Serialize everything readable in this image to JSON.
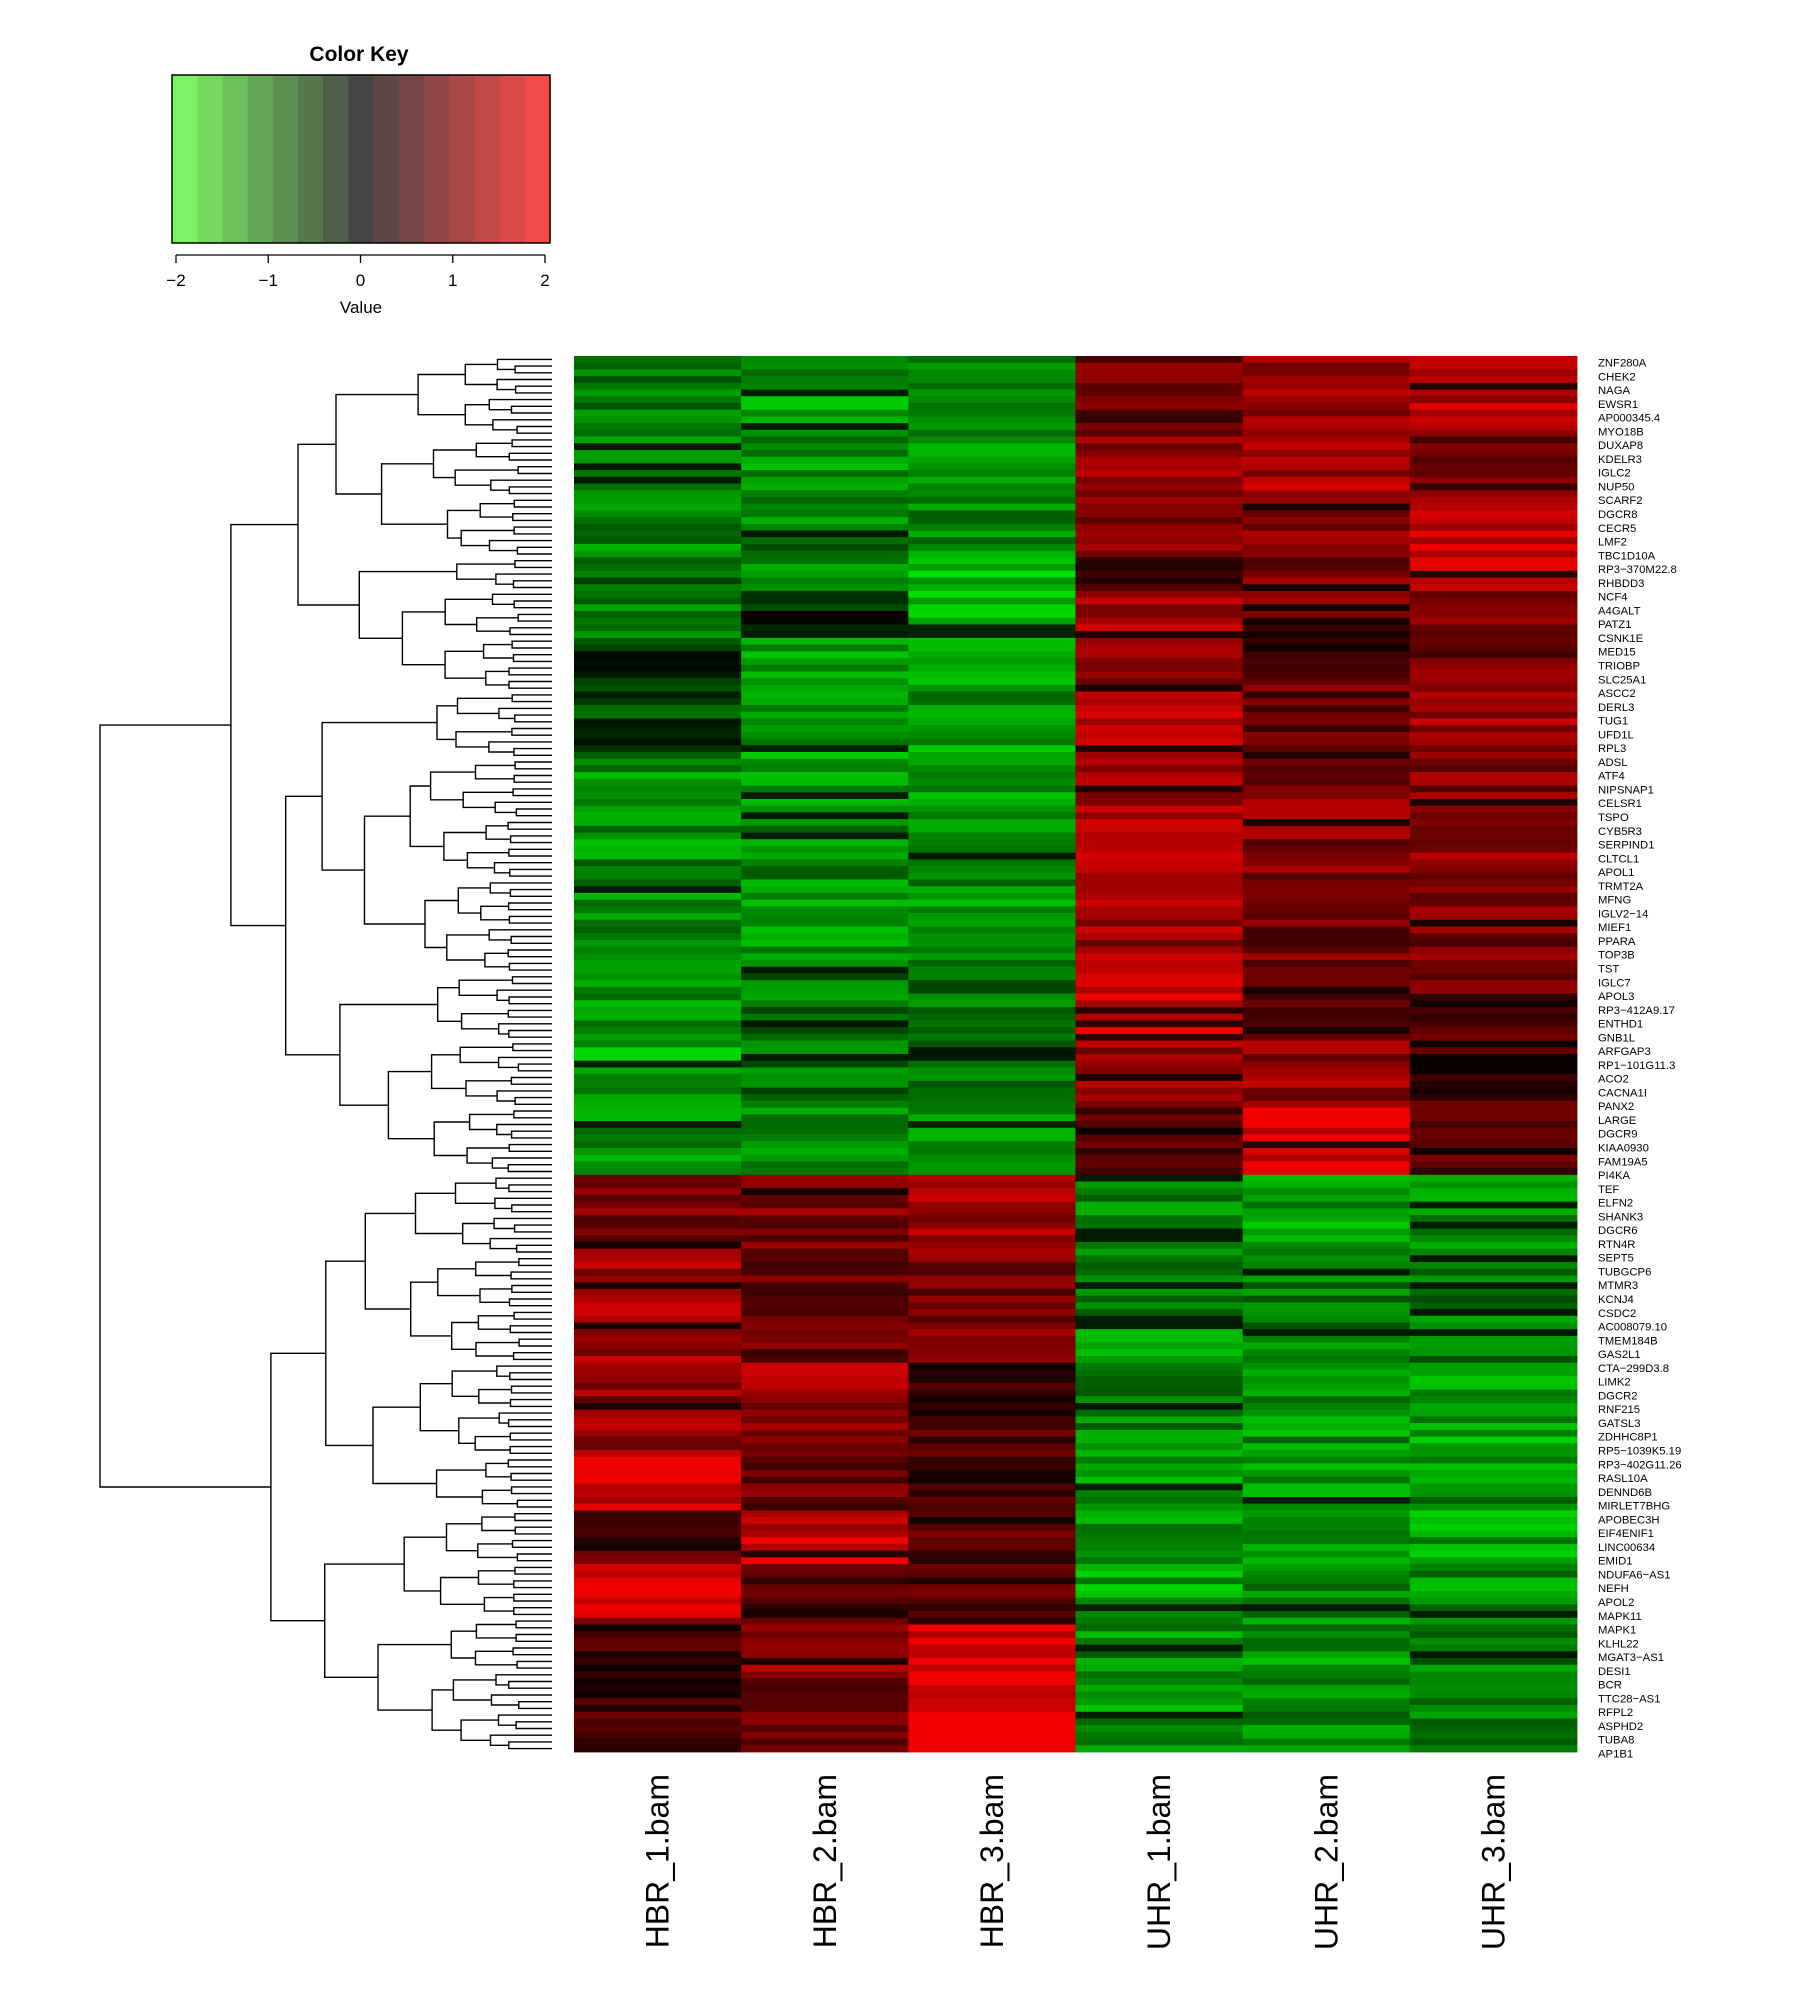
{
  "chart_data": {
    "type": "heatmap",
    "title": "",
    "color_key": {
      "title": "Color Key",
      "xlabel": "Value",
      "ticks": [
        "−2",
        "−1",
        "0",
        "1",
        "2"
      ],
      "range": [
        -2,
        2
      ],
      "n_bins": 15,
      "low_color": "#80ff66",
      "mid_color": "#454545",
      "high_color": "#ff4a4a"
    },
    "colors": {
      "low": "#00ff00",
      "mid": "#000000",
      "high": "#ff0000"
    },
    "columns": [
      "HBR_1.bam",
      "HBR_2.bam",
      "HBR_3.bam",
      "UHR_1.bam",
      "UHR_2.bam",
      "UHR_3.bam"
    ],
    "n_rows": 208,
    "visible_row_labels": [
      "ZNF280A",
      "CHEK2",
      "NAGA",
      "EWSR1",
      "AP000345.4",
      "MYO18B",
      "DUXAP8",
      "KDELR3",
      "IGLC2",
      "NUP50",
      "SCARF2",
      "DGCR8",
      "CECR5",
      "LMF2",
      "TBC1D10A",
      "RP3−370M22.8",
      "RHBDD3",
      "NCF4",
      "A4GALT",
      "PATZ1",
      "CSNK1E",
      "MED15",
      "TRIOBP",
      "SLC25A1",
      "ASCC2",
      "DERL3",
      "TUG1",
      "UFD1L",
      "RPL3",
      "ADSL",
      "ATF4",
      "NIPSNAP1",
      "CELSR1",
      "TSPO",
      "CYB5R3",
      "SERPIND1",
      "CLTCL1",
      "APOL1",
      "TRMT2A",
      "MFNG",
      "IGLV2−14",
      "MIEF1",
      "PPARA",
      "TOP3B",
      "TST",
      "IGLC7",
      "APOL3",
      "RP3−412A9.17",
      "ENTHD1",
      "GNB1L",
      "ARFGAP3",
      "RP1−101G11.3",
      "ACO2",
      "CACNA1I",
      "PANX2",
      "LARGE",
      "DGCR9",
      "KIAA0930",
      "FAM19A5",
      "PI4KA",
      "TEF",
      "ELFN2",
      "SHANK3",
      "DGCR6",
      "RTN4R",
      "SEPT5",
      "TUBGCP6",
      "MTMR3",
      "KCNJ4",
      "CSDC2",
      "AC008079.10",
      "TMEM184B",
      "GAS2L1",
      "CTA−299D3.8",
      "LIMK2",
      "DGCR2",
      "RNF215",
      "GATSL3",
      "ZDHHC8P1",
      "RP5−1039K5.19",
      "RP3−402G11.26",
      "RASL10A",
      "DENND6B",
      "MIRLET7BHG",
      "APOBEC3H",
      "EIF4ENIF1",
      "LINC00634",
      "EMID1",
      "NDUFA6−AS1",
      "NEFH",
      "APOL2",
      "MAPK11",
      "MAPK1",
      "KLHL22",
      "MGAT3−AS1",
      "DESI1",
      "BCR",
      "TTC28−AS1",
      "RFPL2",
      "ASPHD2",
      "TUBA8",
      "AP1B1"
    ],
    "cluster_blocks": [
      {
        "rows": [
          0,
          12
        ],
        "values": [
          -1.1,
          -1.3,
          -1.1,
          0.9,
          1.3,
          1.4
        ]
      },
      {
        "rows": [
          12,
          21
        ],
        "values": [
          -1.1,
          -1.3,
          -1.2,
          1.2,
          1.4,
          0.9
        ]
      },
      {
        "rows": [
          21,
          30
        ],
        "values": [
          -1.2,
          -1.1,
          -1.1,
          1.0,
          1.0,
          1.7
        ]
      },
      {
        "rows": [
          30,
          35
        ],
        "values": [
          -0.9,
          -1.1,
          -1.5,
          0.7,
          1.0,
          1.6
        ]
      },
      {
        "rows": [
          35,
          42
        ],
        "values": [
          -1.2,
          -0.3,
          -1.6,
          1.3,
          0.9,
          0.9
        ]
      },
      {
        "rows": [
          42,
          50
        ],
        "values": [
          -0.4,
          -1.4,
          -1.7,
          1.3,
          0.8,
          0.9
        ]
      },
      {
        "rows": [
          50,
          60
        ],
        "values": [
          -0.6,
          -1.4,
          -1.3,
          1.4,
          0.7,
          1.3
        ]
      },
      {
        "rows": [
          60,
          78
        ],
        "values": [
          -1.2,
          -1.2,
          -1.2,
          1.4,
          1.1,
          1.1
        ]
      },
      {
        "rows": [
          78,
          92
        ],
        "values": [
          -1.2,
          -1.2,
          -1.2,
          1.3,
          0.9,
          1.0
        ]
      },
      {
        "rows": [
          92,
          102
        ],
        "values": [
          -1.2,
          -1.0,
          -1.0,
          1.8,
          0.5,
          0.8
        ]
      },
      {
        "rows": [
          102,
          112
        ],
        "values": [
          -1.4,
          -1.0,
          -1.1,
          1.3,
          1.2,
          0.5
        ]
      },
      {
        "rows": [
          112,
          122
        ],
        "values": [
          -1.2,
          -1.1,
          -1.4,
          0.5,
          1.8,
          0.6
        ]
      },
      {
        "rows": [
          122,
          134
        ],
        "values": [
          1.0,
          1.0,
          1.3,
          -1.2,
          -1.3,
          -1.3
        ]
      },
      {
        "rows": [
          134,
          150
        ],
        "values": [
          1.3,
          0.9,
          1.0,
          -1.2,
          -1.1,
          -1.1
        ]
      },
      {
        "rows": [
          150,
          164
        ],
        "values": [
          1.2,
          1.3,
          0.6,
          -1.1,
          -1.3,
          -1.4
        ]
      },
      {
        "rows": [
          164,
          172
        ],
        "values": [
          1.7,
          0.8,
          0.4,
          -1.3,
          -1.3,
          -1.2
        ]
      },
      {
        "rows": [
          172,
          180
        ],
        "values": [
          0.7,
          1.7,
          0.8,
          -1.2,
          -1.2,
          -1.4
        ]
      },
      {
        "rows": [
          180,
          188
        ],
        "values": [
          1.9,
          0.6,
          0.6,
          -1.4,
          -1.1,
          -1.2
        ]
      },
      {
        "rows": [
          188,
          196
        ],
        "values": [
          0.6,
          1.2,
          1.8,
          -1.2,
          -1.3,
          -1.1
        ]
      },
      {
        "rows": [
          196,
          208
        ],
        "values": [
          0.5,
          0.7,
          1.9,
          -1.3,
          -1.1,
          -1.2
        ]
      }
    ]
  }
}
